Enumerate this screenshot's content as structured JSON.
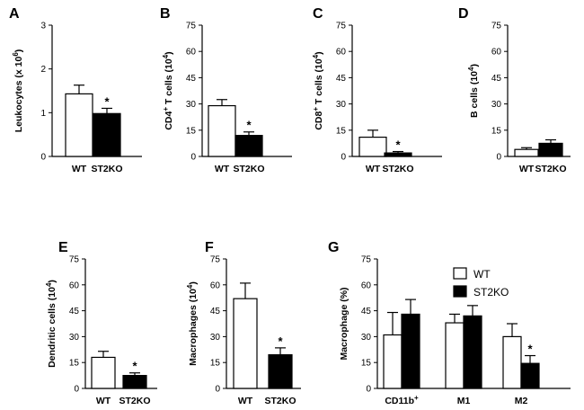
{
  "chart_data": [
    {
      "type": "bar",
      "panel": "A",
      "ylabel": "Leukocytes (x 10",
      "ylabel_sup": "6",
      "ylabel_tail": ")",
      "ylim": [
        0,
        3
      ],
      "yticks": [
        0,
        1,
        2,
        3
      ],
      "categories": [
        "WT",
        "ST2KO"
      ],
      "values": [
        1.43,
        0.98
      ],
      "errors": [
        0.2,
        0.12
      ],
      "significant": [
        false,
        true
      ]
    },
    {
      "type": "bar",
      "panel": "B",
      "ylabel": "CD4",
      "ylabel_sup": "+",
      "ylabel_tail": " T cells (10",
      "ylabel_sup2": "4",
      "ylabel_tail2": ")",
      "ylim": [
        0,
        75
      ],
      "yticks": [
        0,
        15,
        30,
        45,
        60,
        75
      ],
      "categories": [
        "WT",
        "ST2KO"
      ],
      "values": [
        29,
        12
      ],
      "errors": [
        3.5,
        2
      ],
      "significant": [
        false,
        true
      ]
    },
    {
      "type": "bar",
      "panel": "C",
      "ylabel": "CD8",
      "ylabel_sup": "+",
      "ylabel_tail": " T cells (10",
      "ylabel_sup2": "4",
      "ylabel_tail2": ")",
      "ylim": [
        0,
        75
      ],
      "yticks": [
        0,
        15,
        30,
        45,
        60,
        75
      ],
      "categories": [
        "WT",
        "ST2KO"
      ],
      "values": [
        11,
        2
      ],
      "errors": [
        4,
        0.8
      ],
      "significant": [
        false,
        true
      ]
    },
    {
      "type": "bar",
      "panel": "D",
      "ylabel": "B cells (10",
      "ylabel_sup": "4",
      "ylabel_tail": ")",
      "ylim": [
        0,
        75
      ],
      "yticks": [
        0,
        15,
        30,
        45,
        60,
        75
      ],
      "categories": [
        "WT",
        "ST2KO"
      ],
      "values": [
        4,
        7.5
      ],
      "errors": [
        1,
        2
      ],
      "significant": [
        false,
        false
      ]
    },
    {
      "type": "bar",
      "panel": "E",
      "ylabel": "Dendritic cells (10",
      "ylabel_sup": "4",
      "ylabel_tail": ")",
      "ylim": [
        0,
        75
      ],
      "yticks": [
        0,
        15,
        30,
        45,
        60,
        75
      ],
      "categories": [
        "WT",
        "ST2KO"
      ],
      "values": [
        18,
        7.5
      ],
      "errors": [
        3.5,
        1.5
      ],
      "significant": [
        false,
        true
      ]
    },
    {
      "type": "bar",
      "panel": "F",
      "ylabel": "Macrophages (10",
      "ylabel_sup": "4",
      "ylabel_tail": ")",
      "ylim": [
        0,
        75
      ],
      "yticks": [
        0,
        15,
        30,
        45,
        60,
        75
      ],
      "categories": [
        "WT",
        "ST2KO"
      ],
      "values": [
        52,
        19.5
      ],
      "errors": [
        9,
        4
      ],
      "significant": [
        false,
        true
      ]
    },
    {
      "type": "bar",
      "panel": "G",
      "ylabel": "Macrophage (%)",
      "ylim": [
        0,
        75
      ],
      "yticks": [
        0,
        15,
        30,
        45,
        60,
        75
      ],
      "categories": [
        "CD11b",
        "M1",
        "M2"
      ],
      "category_sups": [
        "+",
        "",
        ""
      ],
      "series": [
        {
          "name": "WT",
          "values": [
            31,
            38,
            30
          ],
          "errors": [
            13,
            5,
            7.5
          ]
        },
        {
          "name": "ST2KO",
          "values": [
            43,
            42,
            14.5
          ],
          "errors": [
            8.5,
            6,
            4.5
          ]
        }
      ],
      "significant": [
        false,
        false,
        true
      ],
      "legend": "top-right"
    }
  ],
  "star_symbol": "*",
  "colors": {
    "wt": "#ffffff",
    "ko": "#000000",
    "axis": "#000000"
  }
}
